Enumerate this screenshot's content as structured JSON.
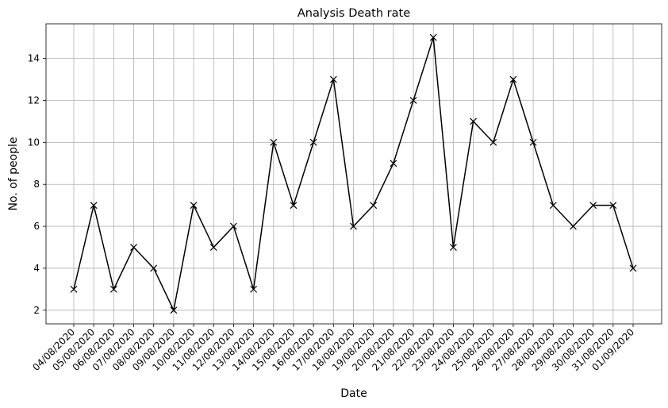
{
  "chart_data": {
    "type": "line",
    "title": "Analysis Death rate",
    "xlabel": "Date",
    "ylabel": "No. of people",
    "categories": [
      "04/08/2020",
      "05/08/2020",
      "06/08/2020",
      "07/08/2020",
      "08/08/2020",
      "09/08/2020",
      "10/08/2020",
      "11/08/2020",
      "12/08/2020",
      "13/08/2020",
      "14/08/2020",
      "15/08/2020",
      "16/08/2020",
      "17/08/2020",
      "18/08/2020",
      "19/08/2020",
      "20/08/2020",
      "21/08/2020",
      "22/08/2020",
      "23/08/2020",
      "24/08/2020",
      "25/08/2020",
      "26/08/2020",
      "27/08/2020",
      "28/08/2020",
      "29/08/2020",
      "30/08/2020",
      "31/08/2020",
      "01/09/2020"
    ],
    "values": [
      3,
      7,
      3,
      5,
      4,
      2,
      7,
      5,
      6,
      3,
      10,
      7,
      10,
      13,
      6,
      7,
      9,
      12,
      15,
      5,
      11,
      10,
      13,
      10,
      7,
      6,
      7,
      7,
      4
    ],
    "yticks": [
      2,
      4,
      6,
      8,
      10,
      12,
      14
    ],
    "ylim": [
      1.35,
      15.65
    ],
    "grid": true,
    "marker": "x",
    "color": "#000000"
  }
}
